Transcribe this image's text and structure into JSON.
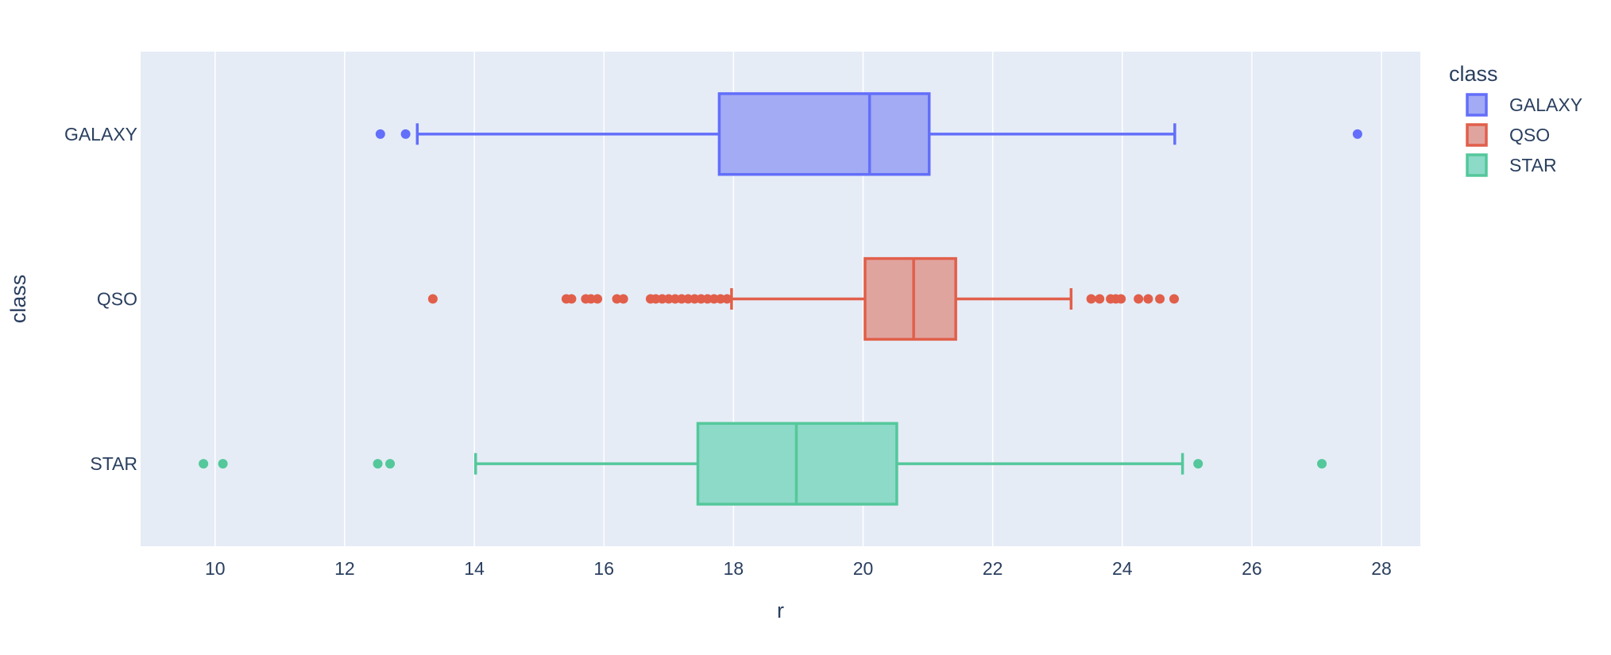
{
  "chart_data": {
    "type": "box",
    "orientation": "horizontal",
    "xlabel": "r",
    "ylabel": "class",
    "xlim": [
      8.85,
      28.6
    ],
    "xticks": [
      10,
      12,
      14,
      16,
      18,
      20,
      22,
      24,
      26,
      28
    ],
    "grid": true,
    "legend": {
      "title": "class",
      "placement": "top-right",
      "entries": [
        "GALAXY",
        "QSO",
        "STAR"
      ]
    },
    "categories": [
      "GALAXY",
      "QSO",
      "STAR"
    ],
    "series": [
      {
        "name": "GALAXY",
        "color": "#636efa",
        "fill": "#a2abf3",
        "stats": {
          "lower_whisker": 13.12,
          "q1": 17.78,
          "median": 20.1,
          "q3": 21.02,
          "upper_whisker": 24.81
        },
        "outliers": [
          12.55,
          12.94,
          27.63
        ]
      },
      {
        "name": "QSO",
        "color": "#e15f4a",
        "fill": "#e0a49f",
        "stats": {
          "lower_whisker": 17.97,
          "q1": 20.03,
          "median": 20.78,
          "q3": 21.43,
          "upper_whisker": 23.21
        },
        "outliers": [
          13.36,
          15.42,
          15.5,
          15.72,
          15.8,
          15.9,
          16.2,
          16.3,
          16.72,
          16.8,
          16.9,
          17.0,
          17.1,
          17.2,
          17.3,
          17.4,
          17.5,
          17.6,
          17.7,
          17.8,
          17.9,
          23.52,
          23.65,
          23.82,
          23.9,
          23.98,
          24.25,
          24.4,
          24.58,
          24.8
        ]
      },
      {
        "name": "STAR",
        "color": "#54c89b",
        "fill": "#8cdac7",
        "stats": {
          "lower_whisker": 14.02,
          "q1": 17.45,
          "median": 18.97,
          "q3": 20.52,
          "upper_whisker": 24.93
        },
        "outliers": [
          9.82,
          10.12,
          12.51,
          12.7,
          25.17,
          27.08
        ]
      }
    ]
  }
}
